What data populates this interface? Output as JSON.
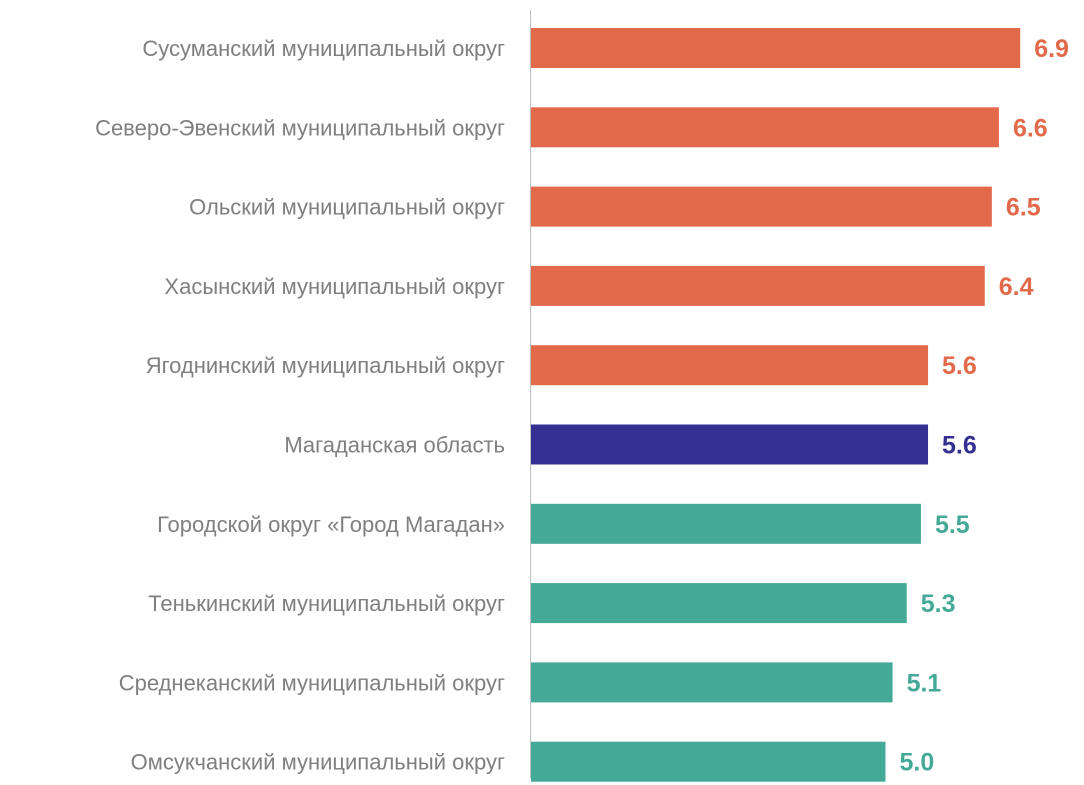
{
  "chart_data": {
    "type": "bar",
    "orientation": "horizontal",
    "title": "",
    "xlabel": "",
    "ylabel": "",
    "categories": [
      "Сусуманский муниципальный округ",
      "Северо-Эвенский муниципальный округ",
      "Ольский муниципальный округ",
      "Хасынский муниципальный округ",
      "Ягоднинский муниципальный округ",
      "Магаданская область",
      "Городской округ «Город Магадан»",
      "Тенькинский муниципальный округ",
      "Среднеканский муниципальный округ",
      "Омсукчанский муниципальный округ"
    ],
    "values": [
      6.9,
      6.6,
      6.5,
      6.4,
      5.6,
      5.6,
      5.5,
      5.3,
      5.1,
      5.0
    ],
    "value_labels": [
      "6.9",
      "6.6",
      "6.5",
      "6.4",
      "5.6",
      "5.6",
      "5.5",
      "5.3",
      "5.1",
      "5.0"
    ],
    "colors": [
      "#e2694a",
      "#e2694a",
      "#e2694a",
      "#e2694a",
      "#e2694a",
      "#343092",
      "#44aa97",
      "#44aa97",
      "#44aa97",
      "#44aa97"
    ],
    "xlim": [
      0,
      7.5
    ],
    "grid": false,
    "legend": "none",
    "category_label_color": "#7f7f7f",
    "axis_color": "#bfbfbf"
  }
}
